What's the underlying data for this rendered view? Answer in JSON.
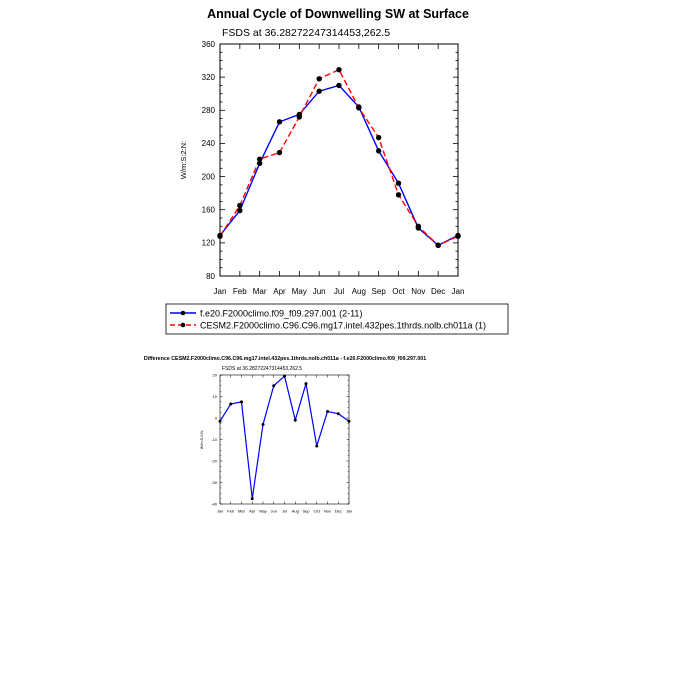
{
  "colors": {
    "series1": "#0000ff",
    "series2": "#ff0000",
    "diff": "#0000ff",
    "marker": "#000000"
  },
  "chart_data": [
    {
      "type": "line",
      "title": "Annual Cycle of Downwelling SW at Surface",
      "subtitle": "FSDS at 36.28272247314453,262.5",
      "xlabel": "",
      "ylabel": "W/m:S:2:N:",
      "categories": [
        "Jan",
        "Feb",
        "Mar",
        "Apr",
        "May",
        "Jun",
        "Jul",
        "Aug",
        "Sep",
        "Oct",
        "Nov",
        "Dec",
        "Jan"
      ],
      "ylim": [
        80,
        360
      ],
      "yticks": [
        80,
        120,
        160,
        200,
        240,
        280,
        320,
        360
      ],
      "grid": false,
      "legend_position": "bottom",
      "series": [
        {
          "name": "f.e20.F2000climo.f09_f09.297.001 (2-11)",
          "color": "blue",
          "style": "solid",
          "values": [
            129,
            159,
            216,
            266,
            275,
            303,
            310,
            284,
            231,
            192,
            138,
            117,
            129
          ]
        },
        {
          "name": "CESM2.F2000climo.C96.C96.mg17.intel.432pes.1thrds.nolb.ch011a (1)",
          "color": "red",
          "style": "dashed",
          "values": [
            128,
            165,
            221,
            229,
            272,
            318,
            329,
            283,
            247,
            178,
            140,
            117,
            128
          ]
        }
      ]
    },
    {
      "type": "line",
      "title": "Difference CESM2.F2000climo.C96.C96.mg17.intel.432pes.1thrds.nolb.ch011a - f.e20.F2000climo.f09_f09.297.001",
      "subtitle": "FSDS at 36.28272247314453,262.5",
      "xlabel": "",
      "ylabel": "W/m:S:2:N:",
      "categories": [
        "Jan",
        "Feb",
        "Mar",
        "Apr",
        "May",
        "Jun",
        "Jul",
        "Aug",
        "Sep",
        "Oct",
        "Nov",
        "Dec",
        "Jan"
      ],
      "ylim": [
        -40,
        20
      ],
      "yticks": [
        -40,
        -30,
        -20,
        -10,
        0,
        10,
        20
      ],
      "grid": false,
      "series": [
        {
          "values": [
            -1.5,
            6.5,
            7.5,
            -37.5,
            -3,
            15,
            19.5,
            -1,
            16,
            -13,
            3,
            2,
            -1.5
          ]
        }
      ]
    }
  ]
}
